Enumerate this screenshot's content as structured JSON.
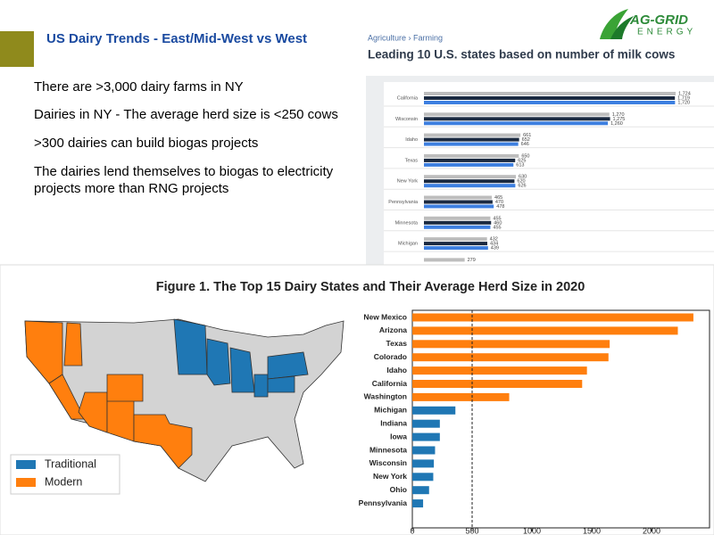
{
  "header": {
    "title": "US Dairy Trends - East/Mid-West vs West",
    "logo_top": "AG-GRID",
    "logo_bottom": "ENERGY"
  },
  "bullets": [
    "There are >3,000 dairy farms in NY",
    "Dairies in NY - The average herd size is <250 cows",
    ">300 dairies can build biogas projects",
    "The dairies lend themselves to biogas to electricity projects more than RNG projects"
  ],
  "map": {
    "legend": [
      {
        "name": "Traditional",
        "color": "#1f77b4"
      },
      {
        "name": "Modern",
        "color": "#ff7f0e"
      }
    ]
  },
  "chart_data": [
    {
      "type": "grouped-hbar",
      "breadcrumb": "Agriculture › Farming",
      "title": "Leading 10 U.S. states based on number of milk cows",
      "categories": [
        "California",
        "Wisconsin",
        "Idaho",
        "Texas",
        "New York",
        "Pennsylvania",
        "Minnesota",
        "Michigan",
        null
      ],
      "series": [
        {
          "color": "#bdbdbd",
          "values": [
            1724,
            1270,
            661,
            650,
            630,
            465,
            455,
            432,
            279
          ],
          "value_labels": [
            "1,724",
            "1,270",
            "661",
            "650",
            "630",
            "465",
            "455",
            "432",
            "279"
          ]
        },
        {
          "color": "#1b2a41",
          "values": [
            1719,
            1275,
            652,
            625,
            620,
            470,
            460,
            434,
            null
          ],
          "value_labels": [
            "1,719",
            "1,275",
            "652",
            "625",
            "620",
            "470",
            "460",
            "434",
            null
          ]
        },
        {
          "color": "#3d7fe0",
          "values": [
            1720,
            1260,
            646,
            613,
            626,
            478,
            455,
            439,
            null
          ],
          "value_labels": [
            "1,720",
            "1,260",
            "646",
            "613",
            "626",
            "478",
            "455",
            "439",
            null
          ]
        }
      ]
    },
    {
      "type": "hbar",
      "title": "Figure 1. The Top 15 Dairy States and Their Average Herd Size in 2020",
      "categories": [
        "New Mexico",
        "Arizona",
        "Texas",
        "Colorado",
        "Idaho",
        "California",
        "Washington",
        "Michigan",
        "Indiana",
        "Iowa",
        "Minnesota",
        "Wisconsin",
        "New York",
        "Ohio",
        "Pennsylvania"
      ],
      "values": [
        2350,
        2220,
        1650,
        1640,
        1460,
        1420,
        810,
        360,
        230,
        230,
        190,
        180,
        175,
        140,
        90
      ],
      "colors": [
        "#ff7f0e",
        "#ff7f0e",
        "#ff7f0e",
        "#ff7f0e",
        "#ff7f0e",
        "#ff7f0e",
        "#ff7f0e",
        "#1f77b4",
        "#1f77b4",
        "#1f77b4",
        "#1f77b4",
        "#1f77b4",
        "#1f77b4",
        "#1f77b4",
        "#1f77b4"
      ],
      "xlim": [
        0,
        2485
      ],
      "xticks": [
        0,
        500,
        1000,
        1500,
        2000
      ],
      "reference_x": 500
    }
  ]
}
